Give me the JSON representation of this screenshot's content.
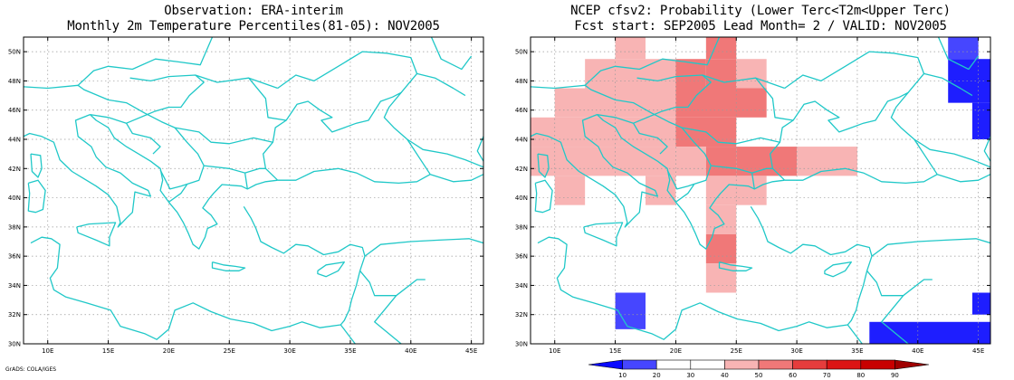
{
  "left_panel": {
    "title_line1": "Observation: ERA-interim",
    "title_line2": "Monthly 2m Temperature Percentiles(81-05): NOV2005"
  },
  "right_panel": {
    "title_line1": "NCEP cfsv2: Probability (Lower Terc<T2m<Upper Terc)",
    "title_line2": "Fcst start: SEP2005  Lead Month= 2 / VALID: NOV2005"
  },
  "axes": {
    "lon_min": 8,
    "lon_max": 46,
    "lat_min": 30,
    "lat_max": 51,
    "lon_ticks": [
      10,
      15,
      20,
      25,
      30,
      35,
      40,
      45
    ],
    "lon_labels": [
      "10E",
      "15E",
      "20E",
      "25E",
      "30E",
      "35E",
      "40E",
      "45E"
    ],
    "lat_ticks": [
      30,
      32,
      34,
      36,
      38,
      40,
      42,
      44,
      46,
      48,
      50
    ],
    "lat_labels": [
      "30N",
      "32N",
      "34N",
      "36N",
      "38N",
      "40N",
      "42N",
      "44N",
      "46N",
      "48N",
      "50N"
    ]
  },
  "colorbar": {
    "labels": [
      "10",
      "20",
      "30",
      "40",
      "50",
      "60",
      "70",
      "80",
      "90"
    ],
    "colors": [
      "#0a0aff",
      "#4646ff",
      "#ffffff",
      "#ffffff",
      "#f8b4b4",
      "#f07878",
      "#e63c3c",
      "#dc1414",
      "#c80000",
      "#a00000"
    ]
  },
  "footer": "GrADS: COLA/IGES",
  "coastline_color": "#20c8c8",
  "chart_data": {
    "type": "heatmap",
    "grid_cells": [
      {
        "lon": 15,
        "lat": 49.5,
        "w": 2.5,
        "h": 2,
        "color": "#f8b4b4"
      },
      {
        "lon": 22.5,
        "lat": 49.5,
        "w": 2.5,
        "h": 2,
        "color": "#f07878"
      },
      {
        "lon": 12.5,
        "lat": 47.5,
        "w": 5,
        "h": 2,
        "color": "#f8b4b4"
      },
      {
        "lon": 17.5,
        "lat": 47.5,
        "w": 2.5,
        "h": 2,
        "color": "#f8b4b4"
      },
      {
        "lon": 20,
        "lat": 47.5,
        "w": 2.5,
        "h": 2,
        "color": "#f07878"
      },
      {
        "lon": 22.5,
        "lat": 47.5,
        "w": 2.5,
        "h": 2,
        "color": "#f07878"
      },
      {
        "lon": 25,
        "lat": 47.5,
        "w": 2.5,
        "h": 2,
        "color": "#f8b4b4"
      },
      {
        "lon": 10,
        "lat": 45.5,
        "w": 10,
        "h": 2,
        "color": "#f8b4b4"
      },
      {
        "lon": 20,
        "lat": 45.5,
        "w": 7.5,
        "h": 2,
        "color": "#f07878"
      },
      {
        "lon": 8,
        "lat": 43.5,
        "w": 12,
        "h": 2,
        "color": "#f8b4b4"
      },
      {
        "lon": 20,
        "lat": 43.5,
        "w": 5,
        "h": 2,
        "color": "#f07878"
      },
      {
        "lon": 8,
        "lat": 41.5,
        "w": 12,
        "h": 2,
        "color": "#f8b4b4"
      },
      {
        "lon": 20,
        "lat": 41.5,
        "w": 2.5,
        "h": 2,
        "color": "#f8b4b4"
      },
      {
        "lon": 22.5,
        "lat": 41.5,
        "w": 2.5,
        "h": 2,
        "color": "#f07878"
      },
      {
        "lon": 25,
        "lat": 41.5,
        "w": 5,
        "h": 2,
        "color": "#f07878"
      },
      {
        "lon": 30,
        "lat": 41.5,
        "w": 5,
        "h": 2,
        "color": "#f8b4b4"
      },
      {
        "lon": 10,
        "lat": 39.5,
        "w": 2.5,
        "h": 2,
        "color": "#f8b4b4"
      },
      {
        "lon": 17.5,
        "lat": 39.5,
        "w": 2.5,
        "h": 2,
        "color": "#f8b4b4"
      },
      {
        "lon": 22.5,
        "lat": 39.5,
        "w": 5,
        "h": 2,
        "color": "#f8b4b4"
      },
      {
        "lon": 22.5,
        "lat": 37.5,
        "w": 2.5,
        "h": 2,
        "color": "#f8b4b4"
      },
      {
        "lon": 22.5,
        "lat": 35.5,
        "w": 2.5,
        "h": 2,
        "color": "#f07878"
      },
      {
        "lon": 22.5,
        "lat": 33.5,
        "w": 2.5,
        "h": 2,
        "color": "#f8b4b4"
      },
      {
        "lon": 15,
        "lat": 31,
        "w": 2.5,
        "h": 2.5,
        "color": "#4646ff"
      },
      {
        "lon": 42.5,
        "lat": 49.5,
        "w": 2.5,
        "h": 2,
        "color": "#4646ff"
      },
      {
        "lon": 42.5,
        "lat": 46.5,
        "w": 3.5,
        "h": 3,
        "color": "#1e1eff"
      },
      {
        "lon": 44.5,
        "lat": 44,
        "w": 1.5,
        "h": 2.5,
        "color": "#1e1eff"
      },
      {
        "lon": 44.5,
        "lat": 32,
        "w": 1.5,
        "h": 1.5,
        "color": "#1e1eff"
      },
      {
        "lon": 36,
        "lat": 30,
        "w": 10,
        "h": 1.5,
        "color": "#1e1eff"
      }
    ]
  }
}
